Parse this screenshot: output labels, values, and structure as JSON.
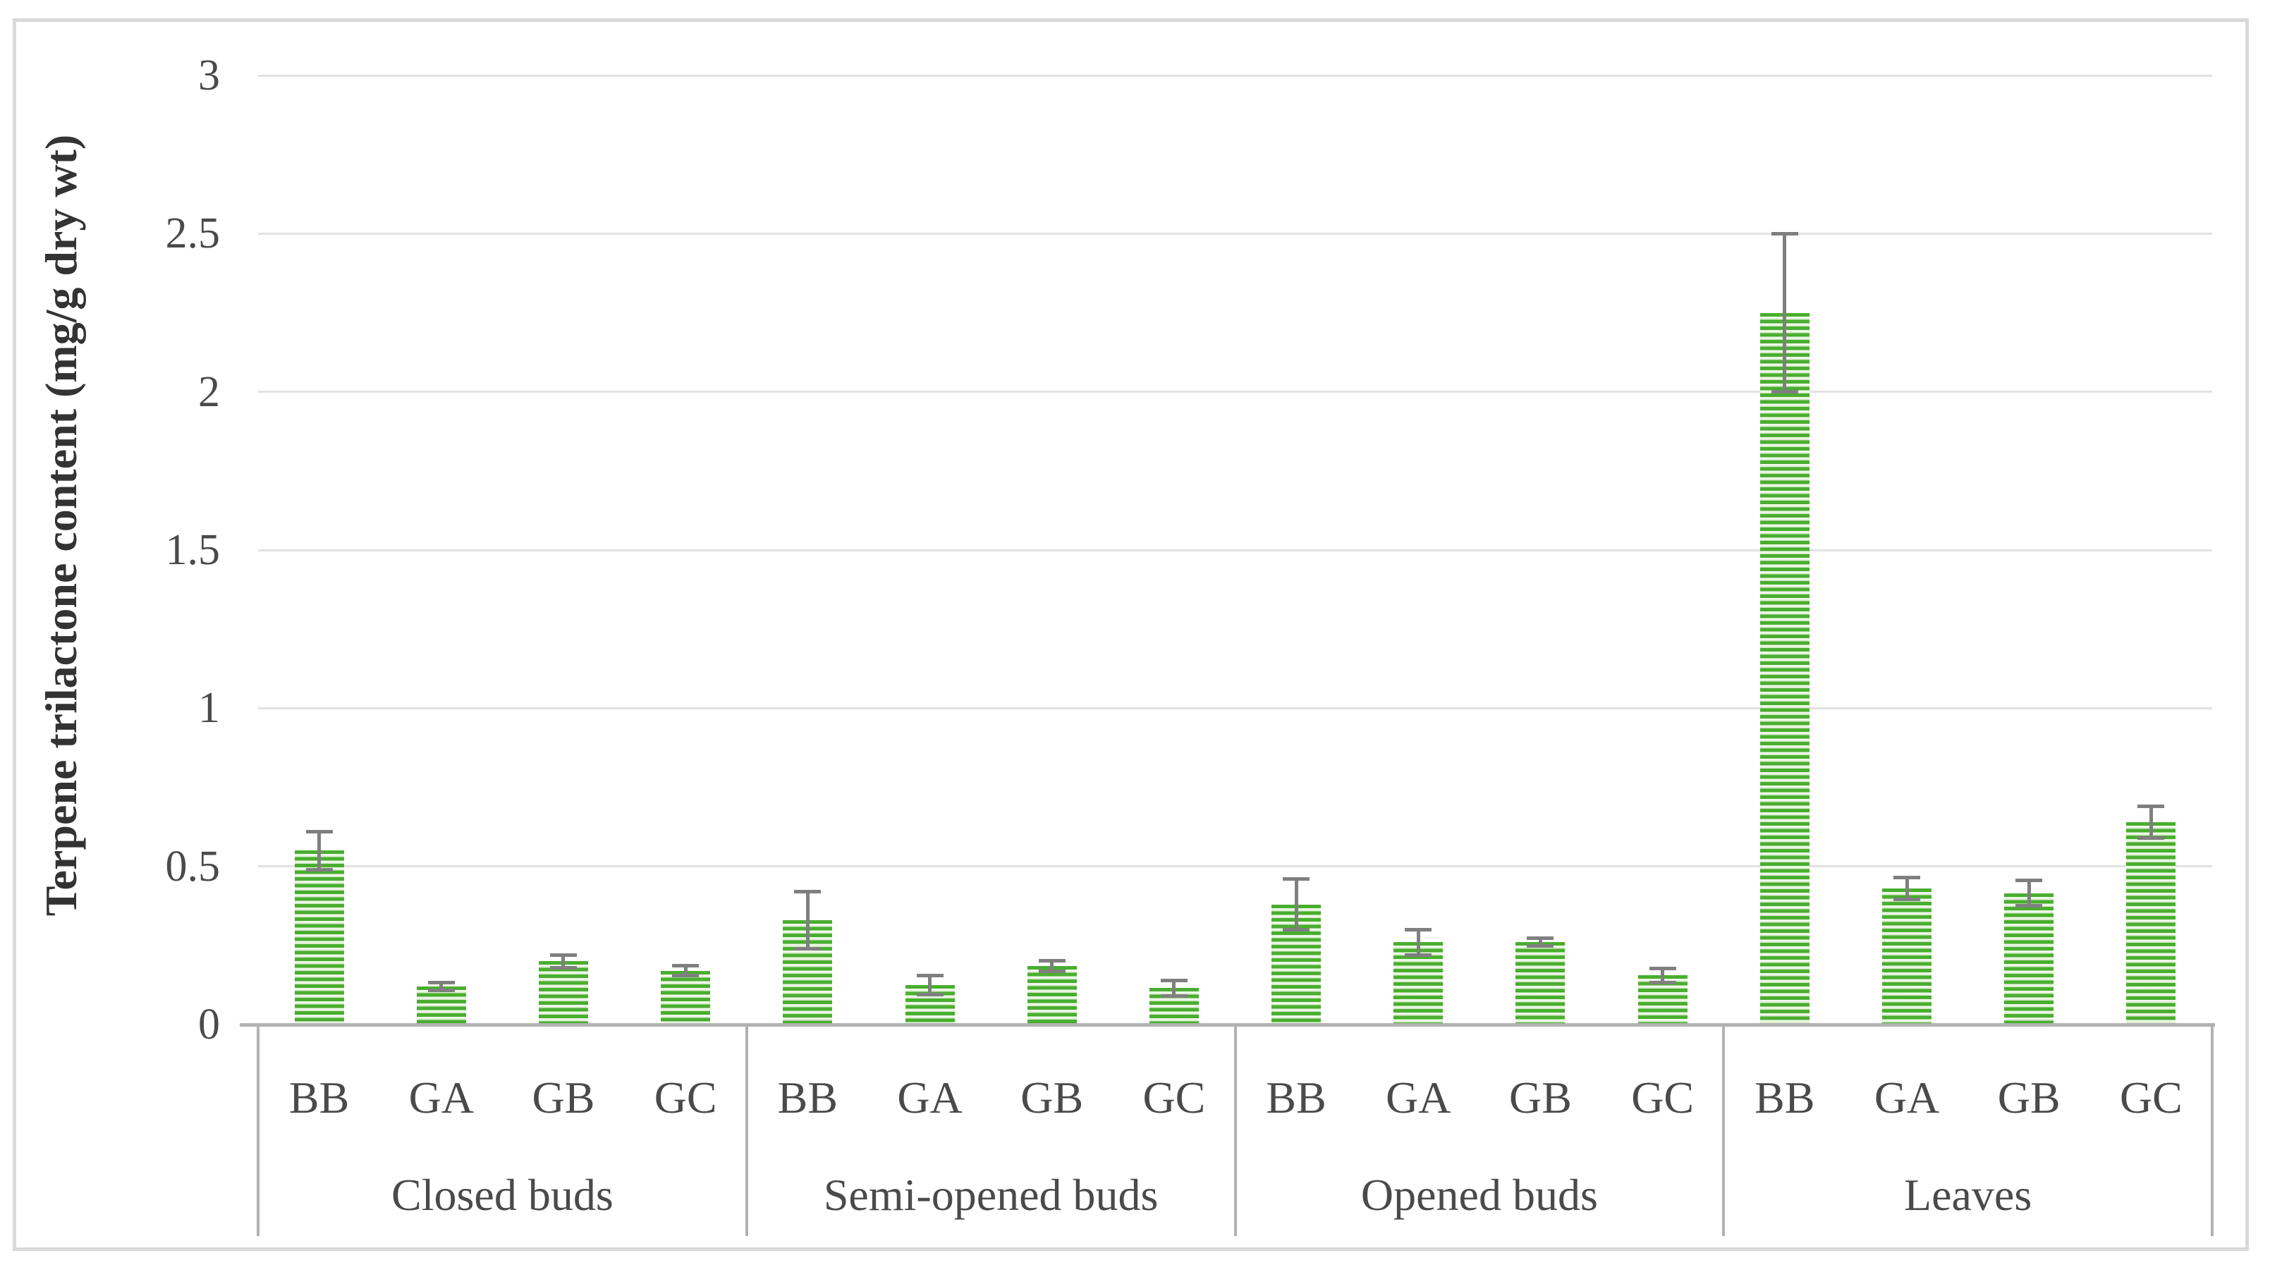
{
  "chart_data": {
    "type": "bar",
    "title": "",
    "ylabel": "Terpene trilactone content (mg/g dry wt)",
    "xlabel": "",
    "ylim": [
      0,
      3
    ],
    "yticks": [
      0,
      0.5,
      1,
      1.5,
      2,
      2.5,
      3
    ],
    "grid": true,
    "legend": false,
    "bar_pattern": "horizontal-stripes",
    "categories": [
      "Closed buds",
      "Semi-opened buds",
      "Opened buds",
      "Leaves"
    ],
    "bar_labels": [
      "BB",
      "GA",
      "GB",
      "GC"
    ],
    "groups": [
      {
        "label": "Closed buds",
        "bars": [
          {
            "label": "BB",
            "value": 0.55,
            "error": 0.06
          },
          {
            "label": "GA",
            "value": 0.12,
            "error": 0.012
          },
          {
            "label": "GB",
            "value": 0.2,
            "error": 0.02
          },
          {
            "label": "GC",
            "value": 0.17,
            "error": 0.015
          }
        ]
      },
      {
        "label": "Semi-opened buds",
        "bars": [
          {
            "label": "BB",
            "value": 0.33,
            "error": 0.09
          },
          {
            "label": "GA",
            "value": 0.125,
            "error": 0.03
          },
          {
            "label": "GB",
            "value": 0.185,
            "error": 0.017
          },
          {
            "label": "GC",
            "value": 0.115,
            "error": 0.025
          }
        ]
      },
      {
        "label": "Opened buds",
        "bars": [
          {
            "label": "BB",
            "value": 0.38,
            "error": 0.08
          },
          {
            "label": "GA",
            "value": 0.26,
            "error": 0.04
          },
          {
            "label": "GB",
            "value": 0.26,
            "error": 0.012
          },
          {
            "label": "GC",
            "value": 0.155,
            "error": 0.022
          }
        ]
      },
      {
        "label": "Leaves",
        "bars": [
          {
            "label": "BB",
            "value": 2.25,
            "error": 0.25
          },
          {
            "label": "GA",
            "value": 0.43,
            "error": 0.035
          },
          {
            "label": "GB",
            "value": 0.415,
            "error": 0.04
          },
          {
            "label": "GC",
            "value": 0.64,
            "error": 0.05
          }
        ]
      }
    ],
    "colors": {
      "bar_green": "#49ae2f",
      "bar_stripe_light1": "#eef7e8",
      "bar_stripe_light2": "#c9e5bb",
      "error_bar": "#7f7f7f",
      "gridline": "#e2e2e2",
      "axis_line": "#b2b2b2",
      "text": "#4a4a4a",
      "figure_border": "#d9d9d9"
    }
  }
}
